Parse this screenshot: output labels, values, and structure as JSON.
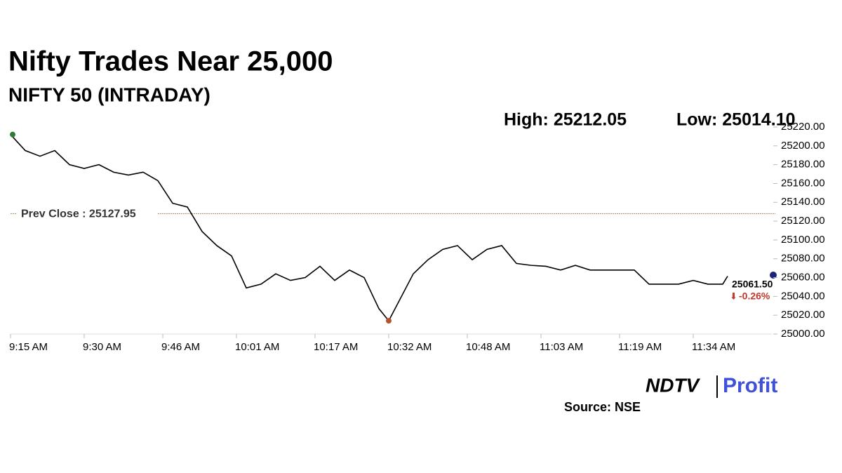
{
  "chart_data": {
    "type": "line",
    "title": "Nifty Trades Near 25,000",
    "subtitle": "NIFTY 50 (INTRADAY)",
    "high_label": "High: 25212.05",
    "low_label": "Low: 25014.10",
    "prev_close": 25127.95,
    "prev_close_label": "Prev Close : 25127.95",
    "last_label": "25061.50",
    "change_label": "-0.26%",
    "source": "Source: NSE",
    "logo": [
      "NDTV",
      "Profit"
    ],
    "color": "#000000",
    "x": [
      0,
      3,
      6,
      9,
      12,
      15,
      18,
      21,
      24,
      27,
      30,
      33,
      36,
      39,
      42,
      45,
      48,
      51,
      54,
      57,
      60,
      63,
      66,
      69,
      72,
      75,
      77,
      79,
      82,
      85,
      88,
      91,
      94,
      97,
      100,
      103,
      106,
      109,
      112,
      115,
      118,
      121,
      124,
      127,
      130,
      133,
      136,
      139,
      142,
      145,
      146
    ],
    "values": [
      25212.05,
      25195,
      25189,
      25195,
      25180,
      25176,
      25180,
      25172,
      25169,
      25172,
      25163,
      25139,
      25135,
      25109,
      25094,
      25083,
      25049,
      25053,
      25064,
      25057,
      25060,
      25072,
      25057,
      25068,
      25060,
      25027,
      25014.1,
      25034,
      25064,
      25079,
      25090,
      25094,
      25079,
      25090,
      25094,
      25075,
      25073,
      25072,
      25068,
      25073,
      25068,
      25068,
      25068,
      25068,
      25053,
      25053,
      25053,
      25057,
      25053,
      25053,
      25061.5
    ],
    "xlim": [
      0,
      155
    ],
    "xticks": [
      {
        "value": 0,
        "label": "9:15 AM"
      },
      {
        "value": 15,
        "label": "9:30 AM"
      },
      {
        "value": 31,
        "label": "9:46 AM"
      },
      {
        "value": 46,
        "label": "10:01 AM"
      },
      {
        "value": 62,
        "label": "10:17 AM"
      },
      {
        "value": 77,
        "label": "10:32 AM"
      },
      {
        "value": 93,
        "label": "10:48 AM"
      },
      {
        "value": 108,
        "label": "11:03 AM"
      },
      {
        "value": 124,
        "label": "11:19 AM"
      },
      {
        "value": 139,
        "label": "11:34 AM"
      }
    ],
    "ylim": [
      25000,
      25220
    ],
    "yticks": [
      {
        "value": 25000,
        "label": "25000.00"
      },
      {
        "value": 25020,
        "label": "25020.00"
      },
      {
        "value": 25040,
        "label": "25040.00"
      },
      {
        "value": 25060,
        "label": "25060.00"
      },
      {
        "value": 25080,
        "label": "25080.00"
      },
      {
        "value": 25100,
        "label": "25100.00"
      },
      {
        "value": 25120,
        "label": "25120.00"
      },
      {
        "value": 25140,
        "label": "25140.00"
      },
      {
        "value": 25160,
        "label": "25160.00"
      },
      {
        "value": 25180,
        "label": "25180.00"
      },
      {
        "value": 25200,
        "label": "25200.00"
      },
      {
        "value": 25220,
        "label": "25220.00"
      }
    ]
  }
}
